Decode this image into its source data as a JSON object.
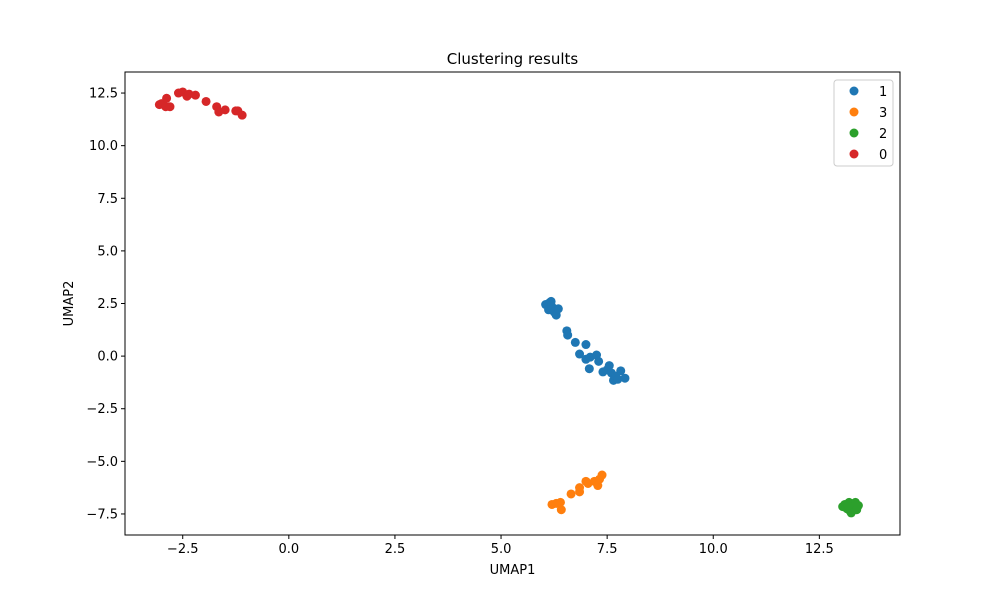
{
  "chart_data": {
    "type": "scatter",
    "title": "Clustering results",
    "xlabel": "UMAP1",
    "ylabel": "UMAP2",
    "xlim": [
      -3.86,
      14.4
    ],
    "ylim": [
      -8.5,
      13.5
    ],
    "xticks": [
      -2.5,
      0.0,
      2.5,
      5.0,
      7.5,
      10.0,
      12.5
    ],
    "xtick_labels": [
      "−2.5",
      "0.0",
      "2.5",
      "5.0",
      "7.5",
      "10.0",
      "12.5"
    ],
    "yticks": [
      -7.5,
      -5.0,
      -2.5,
      0.0,
      2.5,
      5.0,
      7.5,
      10.0,
      12.5
    ],
    "ytick_labels": [
      "−7.5",
      "−5.0",
      "−2.5",
      "0.0",
      "2.5",
      "5.0",
      "7.5",
      "10.0",
      "12.5"
    ],
    "grid": false,
    "legend_position": "top-right",
    "series": [
      {
        "name": "1",
        "color": "#1f77b4",
        "points": [
          [
            6.05,
            2.45
          ],
          [
            6.15,
            2.55
          ],
          [
            6.12,
            2.2
          ],
          [
            6.2,
            2.35
          ],
          [
            6.25,
            2.1
          ],
          [
            6.3,
            1.95
          ],
          [
            6.35,
            2.25
          ],
          [
            6.18,
            2.6
          ],
          [
            6.55,
            1.2
          ],
          [
            6.57,
            1.0
          ],
          [
            6.75,
            0.65
          ],
          [
            6.85,
            0.1
          ],
          [
            7.0,
            0.55
          ],
          [
            7.0,
            -0.15
          ],
          [
            7.1,
            -0.05
          ],
          [
            7.08,
            -0.6
          ],
          [
            7.25,
            0.05
          ],
          [
            7.3,
            -0.25
          ],
          [
            7.4,
            -0.75
          ],
          [
            7.5,
            -0.65
          ],
          [
            7.55,
            -0.45
          ],
          [
            7.6,
            -0.8
          ],
          [
            7.65,
            -1.15
          ],
          [
            7.7,
            -0.95
          ],
          [
            7.75,
            -1.1
          ],
          [
            7.82,
            -0.7
          ],
          [
            7.92,
            -1.05
          ]
        ]
      },
      {
        "name": "3",
        "color": "#ff7f0e",
        "points": [
          [
            6.2,
            -7.05
          ],
          [
            6.3,
            -7.0
          ],
          [
            6.4,
            -6.95
          ],
          [
            6.42,
            -7.3
          ],
          [
            6.65,
            -6.55
          ],
          [
            6.85,
            -6.25
          ],
          [
            6.85,
            -6.45
          ],
          [
            7.0,
            -5.95
          ],
          [
            7.05,
            -6.05
          ],
          [
            7.2,
            -5.95
          ],
          [
            7.28,
            -6.15
          ],
          [
            7.32,
            -5.85
          ],
          [
            7.38,
            -5.65
          ]
        ]
      },
      {
        "name": "2",
        "color": "#2ca02c",
        "points": [
          [
            13.05,
            -7.15
          ],
          [
            13.1,
            -7.05
          ],
          [
            13.15,
            -7.25
          ],
          [
            13.2,
            -6.95
          ],
          [
            13.22,
            -7.35
          ],
          [
            13.28,
            -7.05
          ],
          [
            13.3,
            -7.2
          ],
          [
            13.35,
            -6.95
          ],
          [
            13.38,
            -7.3
          ],
          [
            13.42,
            -7.1
          ],
          [
            13.25,
            -7.45
          ],
          [
            13.18,
            -7.1
          ]
        ]
      },
      {
        "name": "0",
        "color": "#d62728",
        "points": [
          [
            -3.05,
            11.95
          ],
          [
            -3.0,
            12.0
          ],
          [
            -2.9,
            11.85
          ],
          [
            -2.88,
            12.25
          ],
          [
            -2.8,
            11.85
          ],
          [
            -2.6,
            12.5
          ],
          [
            -2.5,
            12.55
          ],
          [
            -2.4,
            12.35
          ],
          [
            -2.35,
            12.45
          ],
          [
            -2.2,
            12.4
          ],
          [
            -1.95,
            12.1
          ],
          [
            -1.7,
            11.85
          ],
          [
            -1.65,
            11.6
          ],
          [
            -1.5,
            11.7
          ],
          [
            -1.25,
            11.65
          ],
          [
            -1.2,
            11.65
          ],
          [
            -1.1,
            11.45
          ]
        ]
      }
    ]
  }
}
